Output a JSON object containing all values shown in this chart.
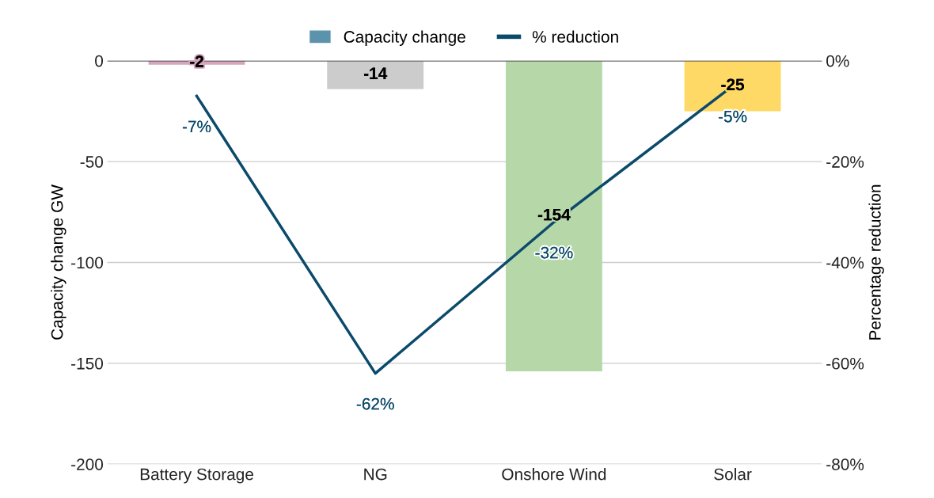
{
  "chart_data": {
    "type": "bar",
    "categories": [
      "Battery Storage",
      "NG",
      "Onshore Wind",
      "Solar"
    ],
    "ylabel": "Capacity change GW",
    "y2label": "Percentage reduction",
    "series": [
      {
        "name": "Capacity change",
        "color": "#5b93ad",
        "colors": [
          "#d5a6bd",
          "#cccccc",
          "#b6d7a8",
          "#ffd966"
        ],
        "values": [
          -2,
          -14,
          -154,
          -25
        ],
        "value_labels": [
          "-2",
          "-14",
          "-154",
          "-25"
        ]
      },
      {
        "name": "% reduction",
        "type": "line",
        "axis": "y2",
        "color": "#0b4a6b",
        "values": [
          -7,
          -62,
          -32,
          -5
        ],
        "value_labels": [
          "-7%",
          "-62%",
          "-32%",
          "-5%"
        ]
      }
    ],
    "ylim": [
      -200,
      0
    ],
    "yticks": [
      -200,
      -150,
      -100,
      -50,
      0
    ],
    "y2lim": [
      -80,
      0
    ],
    "y2ticks": [
      {
        "value": -80,
        "label": "-80%"
      },
      {
        "value": -60,
        "label": "-60%"
      },
      {
        "value": -40,
        "label": "-40%"
      },
      {
        "value": -20,
        "label": "-20%"
      },
      {
        "value": 0,
        "label": "0%"
      }
    ],
    "grid": "y",
    "legend": "top",
    "marker": "none",
    "line_style": "solid"
  }
}
